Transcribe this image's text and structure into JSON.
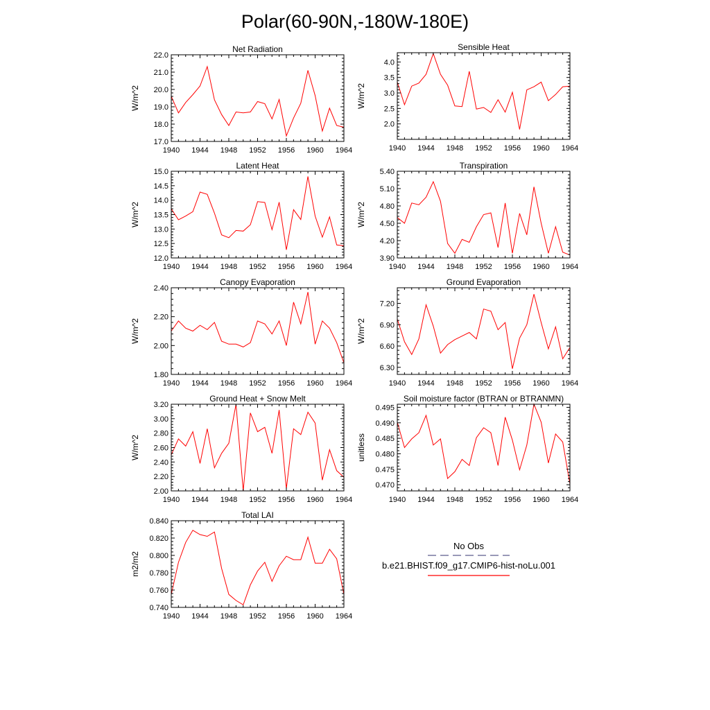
{
  "page_title": "Polar(60-90N,-180W-180E)",
  "legend": {
    "obs_label": "No Obs",
    "obs_color": "#5a5a8c",
    "model_label": "b.e21.BHIST.f09_g17.CMIP6-hist-noLu.001",
    "model_color": "#ff0000"
  },
  "chart_data": [
    {
      "type": "line",
      "title": "Net Radiation",
      "xlabel": "",
      "ylabel": "W/m^2",
      "xlim": [
        1940,
        1964
      ],
      "ylim": [
        17.0,
        22.0
      ],
      "xticks": [
        "1940",
        "1944",
        "1948",
        "1952",
        "1956",
        "1960",
        "1964"
      ],
      "yticks": [
        "17.0",
        "18.0",
        "19.0",
        "20.0",
        "21.0",
        "22.0"
      ],
      "x": [
        1940,
        1941,
        1942,
        1943,
        1944,
        1945,
        1946,
        1947,
        1948,
        1949,
        1950,
        1951,
        1952,
        1953,
        1954,
        1955,
        1956,
        1957,
        1958,
        1959,
        1960,
        1961,
        1962,
        1963,
        1964
      ],
      "series": [
        {
          "values": [
            19.6,
            18.65,
            19.25,
            19.7,
            20.2,
            21.32,
            19.4,
            18.55,
            17.92,
            18.7,
            18.65,
            18.7,
            19.3,
            19.18,
            18.3,
            19.42,
            17.32,
            18.35,
            19.2,
            21.1,
            19.65,
            17.6,
            18.92,
            17.92,
            17.82
          ],
          "color": "#ff0000"
        }
      ]
    },
    {
      "type": "line",
      "title": "Sensible Heat",
      "xlabel": "",
      "ylabel": "W/m^2",
      "xlim": [
        1940,
        1964
      ],
      "ylim": [
        1.5,
        4.3
      ],
      "xticks": [
        "1940",
        "1944",
        "1948",
        "1952",
        "1956",
        "1960",
        "1964"
      ],
      "yticks": [
        "2.0",
        "2.5",
        "3.0",
        "3.5",
        "4.0"
      ],
      "x": [
        1940,
        1941,
        1942,
        1943,
        1944,
        1945,
        1946,
        1947,
        1948,
        1949,
        1950,
        1951,
        1952,
        1953,
        1954,
        1955,
        1956,
        1957,
        1958,
        1959,
        1960,
        1961,
        1962,
        1963,
        1964
      ],
      "series": [
        {
          "values": [
            3.35,
            2.62,
            3.22,
            3.32,
            3.6,
            4.27,
            3.6,
            3.25,
            2.58,
            2.56,
            3.7,
            2.48,
            2.53,
            2.37,
            2.78,
            2.38,
            3.02,
            1.82,
            3.1,
            3.2,
            3.35,
            2.75,
            2.95,
            3.2,
            3.22
          ],
          "color": "#ff0000"
        }
      ]
    },
    {
      "type": "line",
      "title": "Latent Heat",
      "xlabel": "",
      "ylabel": "W/m^2",
      "xlim": [
        1940,
        1964
      ],
      "ylim": [
        12.0,
        15.0
      ],
      "xticks": [
        "1940",
        "1944",
        "1948",
        "1952",
        "1956",
        "1960",
        "1964"
      ],
      "yticks": [
        "12.0",
        "12.5",
        "13.0",
        "13.5",
        "14.0",
        "14.5",
        "15.0"
      ],
      "x": [
        1940,
        1941,
        1942,
        1943,
        1944,
        1945,
        1946,
        1947,
        1948,
        1949,
        1950,
        1951,
        1952,
        1953,
        1954,
        1955,
        1956,
        1957,
        1958,
        1959,
        1960,
        1961,
        1962,
        1963,
        1964
      ],
      "series": [
        {
          "values": [
            13.7,
            13.32,
            13.45,
            13.6,
            14.28,
            14.2,
            13.55,
            12.8,
            12.7,
            12.95,
            12.93,
            13.15,
            13.95,
            13.92,
            12.98,
            13.93,
            12.28,
            13.67,
            13.33,
            14.82,
            13.45,
            12.72,
            13.42,
            12.45,
            12.42
          ],
          "color": "#ff0000"
        }
      ]
    },
    {
      "type": "line",
      "title": "Transpiration",
      "xlabel": "",
      "ylabel": "W/m^2",
      "xlim": [
        1940,
        1964
      ],
      "ylim": [
        3.9,
        5.4
      ],
      "xticks": [
        "1940",
        "1944",
        "1948",
        "1952",
        "1956",
        "1960",
        "1964"
      ],
      "yticks": [
        "3.90",
        "4.20",
        "4.50",
        "4.80",
        "5.10",
        "5.40"
      ],
      "x": [
        1940,
        1941,
        1942,
        1943,
        1944,
        1945,
        1946,
        1947,
        1948,
        1949,
        1950,
        1951,
        1952,
        1953,
        1954,
        1955,
        1956,
        1957,
        1958,
        1959,
        1960,
        1961,
        1962,
        1963,
        1964
      ],
      "series": [
        {
          "values": [
            4.6,
            4.5,
            4.85,
            4.82,
            4.95,
            5.22,
            4.88,
            4.15,
            3.98,
            4.22,
            4.17,
            4.44,
            4.65,
            4.68,
            4.08,
            4.85,
            3.98,
            4.67,
            4.3,
            5.13,
            4.5,
            3.98,
            4.44,
            4.0,
            3.95
          ],
          "color": "#ff0000"
        }
      ]
    },
    {
      "type": "line",
      "title": "Canopy Evaporation",
      "xlabel": "",
      "ylabel": "W/m^2",
      "xlim": [
        1940,
        1964
      ],
      "ylim": [
        1.8,
        2.4
      ],
      "xticks": [
        "1940",
        "1944",
        "1948",
        "1952",
        "1956",
        "1960",
        "1964"
      ],
      "yticks": [
        "1.80",
        "2.00",
        "2.20",
        "2.40"
      ],
      "x": [
        1940,
        1941,
        1942,
        1943,
        1944,
        1945,
        1946,
        1947,
        1948,
        1949,
        1950,
        1951,
        1952,
        1953,
        1954,
        1955,
        1956,
        1957,
        1958,
        1959,
        1960,
        1961,
        1962,
        1963,
        1964
      ],
      "series": [
        {
          "values": [
            2.1,
            2.17,
            2.12,
            2.1,
            2.14,
            2.11,
            2.16,
            2.03,
            2.01,
            2.01,
            1.99,
            2.02,
            2.17,
            2.15,
            2.08,
            2.17,
            2.0,
            2.3,
            2.15,
            2.37,
            2.01,
            2.17,
            2.12,
            2.02,
            1.88
          ],
          "color": "#ff0000"
        }
      ]
    },
    {
      "type": "line",
      "title": "Ground Evaporation",
      "xlabel": "",
      "ylabel": "W/m^2",
      "xlim": [
        1940,
        1964
      ],
      "ylim": [
        6.2,
        7.42
      ],
      "xticks": [
        "1940",
        "1944",
        "1948",
        "1952",
        "1956",
        "1960",
        "1964"
      ],
      "yticks": [
        "6.30",
        "6.60",
        "6.90",
        "7.20"
      ],
      "x": [
        1940,
        1941,
        1942,
        1943,
        1944,
        1945,
        1946,
        1947,
        1948,
        1949,
        1950,
        1951,
        1952,
        1953,
        1954,
        1955,
        1956,
        1957,
        1958,
        1959,
        1960,
        1961,
        1962,
        1963,
        1964
      ],
      "series": [
        {
          "values": [
            6.98,
            6.66,
            6.48,
            6.7,
            7.18,
            6.88,
            6.5,
            6.62,
            6.69,
            6.74,
            6.79,
            6.7,
            7.12,
            7.09,
            6.83,
            6.93,
            6.28,
            6.71,
            6.9,
            7.33,
            6.93,
            6.56,
            6.87,
            6.42,
            6.58
          ],
          "color": "#ff0000"
        }
      ]
    },
    {
      "type": "line",
      "title": "Ground Heat + Snow Melt",
      "xlabel": "",
      "ylabel": "W/m^2",
      "xlim": [
        1940,
        1964
      ],
      "ylim": [
        2.0,
        3.2
      ],
      "xticks": [
        "1940",
        "1944",
        "1948",
        "1952",
        "1956",
        "1960",
        "1964"
      ],
      "yticks": [
        "2.00",
        "2.20",
        "2.40",
        "2.60",
        "2.80",
        "3.00",
        "3.20"
      ],
      "x": [
        1940,
        1941,
        1942,
        1943,
        1944,
        1945,
        1946,
        1947,
        1948,
        1949,
        1950,
        1951,
        1952,
        1953,
        1954,
        1955,
        1956,
        1957,
        1958,
        1959,
        1960,
        1961,
        1962,
        1963,
        1964
      ],
      "series": [
        {
          "values": [
            2.5,
            2.72,
            2.62,
            2.82,
            2.38,
            2.86,
            2.32,
            2.52,
            2.66,
            3.2,
            2.0,
            3.08,
            2.82,
            2.88,
            2.52,
            3.12,
            2.03,
            2.86,
            2.78,
            3.09,
            2.94,
            2.15,
            2.57,
            2.28,
            2.19
          ],
          "color": "#ff0000"
        }
      ]
    },
    {
      "type": "line",
      "title": "Soil moisture factor (BTRAN or BTRANMN)",
      "xlabel": "",
      "ylabel": "unitless",
      "xlim": [
        1940,
        1964
      ],
      "ylim": [
        0.468,
        0.496
      ],
      "xticks": [
        "1940",
        "1944",
        "1948",
        "1952",
        "1956",
        "1960",
        "1964"
      ],
      "yticks": [
        "0.470",
        "0.475",
        "0.480",
        "0.485",
        "0.490",
        "0.495"
      ],
      "x": [
        1940,
        1941,
        1942,
        1943,
        1944,
        1945,
        1946,
        1947,
        1948,
        1949,
        1950,
        1951,
        1952,
        1953,
        1954,
        1955,
        1956,
        1957,
        1958,
        1959,
        1960,
        1961,
        1962,
        1963,
        1964
      ],
      "series": [
        {
          "values": [
            0.4902,
            0.482,
            0.4848,
            0.4868,
            0.4924,
            0.4828,
            0.4848,
            0.472,
            0.4742,
            0.4782,
            0.4762,
            0.4852,
            0.4884,
            0.4868,
            0.4762,
            0.4918,
            0.4844,
            0.4748,
            0.4828,
            0.496,
            0.4902,
            0.477,
            0.4864,
            0.4838,
            0.4702
          ],
          "color": "#ff0000"
        }
      ]
    },
    {
      "type": "line",
      "title": "Total LAI",
      "xlabel": "",
      "ylabel": "m2/m2",
      "xlim": [
        1940,
        1964
      ],
      "ylim": [
        0.74,
        0.84
      ],
      "xticks": [
        "1940",
        "1944",
        "1948",
        "1952",
        "1956",
        "1960",
        "1964"
      ],
      "yticks": [
        "0.740",
        "0.760",
        "0.780",
        "0.800",
        "0.820",
        "0.840"
      ],
      "x": [
        1940,
        1941,
        1942,
        1943,
        1944,
        1945,
        1946,
        1947,
        1948,
        1949,
        1950,
        1951,
        1952,
        1953,
        1954,
        1955,
        1956,
        1957,
        1958,
        1959,
        1960,
        1961,
        1962,
        1963,
        1964
      ],
      "series": [
        {
          "values": [
            0.755,
            0.792,
            0.815,
            0.829,
            0.824,
            0.822,
            0.827,
            0.785,
            0.755,
            0.748,
            0.743,
            0.766,
            0.782,
            0.792,
            0.77,
            0.788,
            0.799,
            0.795,
            0.795,
            0.821,
            0.791,
            0.791,
            0.807,
            0.796,
            0.755
          ],
          "color": "#ff0000"
        }
      ]
    }
  ]
}
